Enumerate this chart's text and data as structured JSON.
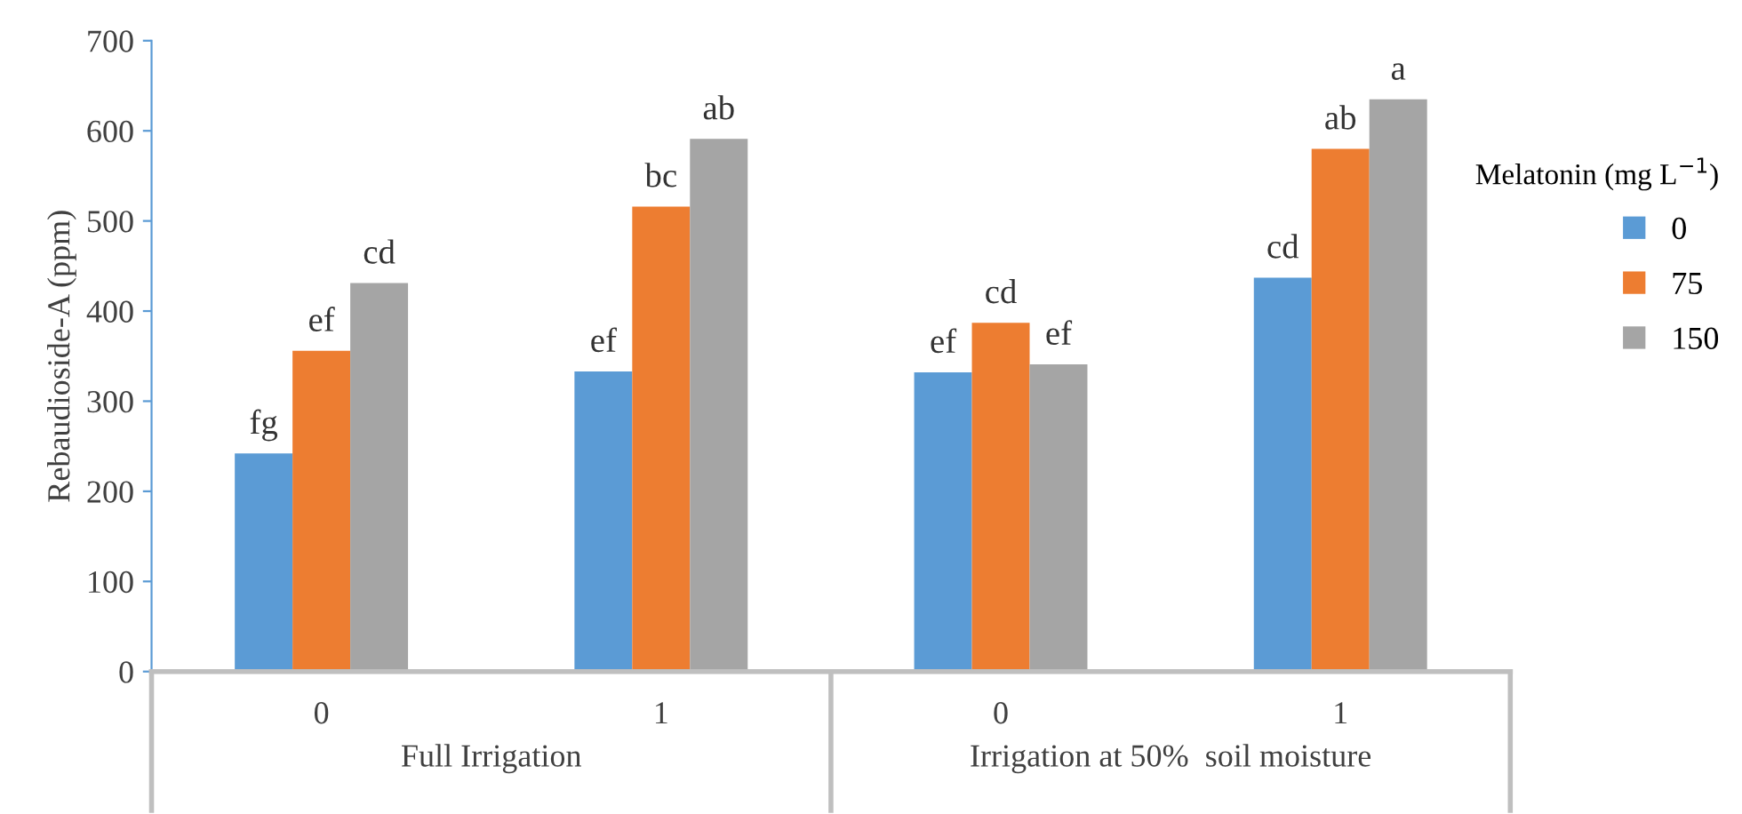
{
  "chart_data": {
    "type": "bar",
    "ylabel": "Rebaudioside-A (ppm)",
    "legend_title": "Melatonin (mg L$^{−1}$)",
    "categories": [
      "0",
      "1",
      "0",
      "1"
    ],
    "annotations": [
      "Full Irrigation",
      "Irrigation at 50%  soil moisture"
    ],
    "series": [
      {
        "name": "0",
        "color": "#5b9bd5",
        "values": [
          242,
          333,
          332,
          437
        ],
        "value_labels": [
          "fg",
          "ef",
          "ef",
          "cd"
        ]
      },
      {
        "name": "75",
        "color": "#ed7d31",
        "values": [
          356,
          516,
          387,
          580
        ],
        "value_labels": [
          "ef",
          "bc",
          "cd",
          "ab"
        ]
      },
      {
        "name": "150",
        "color": "#a5a5a5",
        "values": [
          431,
          591,
          341,
          635
        ],
        "value_labels": [
          "cd",
          "ab",
          "ef",
          "a"
        ]
      }
    ],
    "ylim": [
      0,
      700
    ],
    "yticks": [
      0,
      100,
      200,
      300,
      400,
      500,
      600,
      700
    ],
    "grid": false,
    "legend": "right"
  }
}
